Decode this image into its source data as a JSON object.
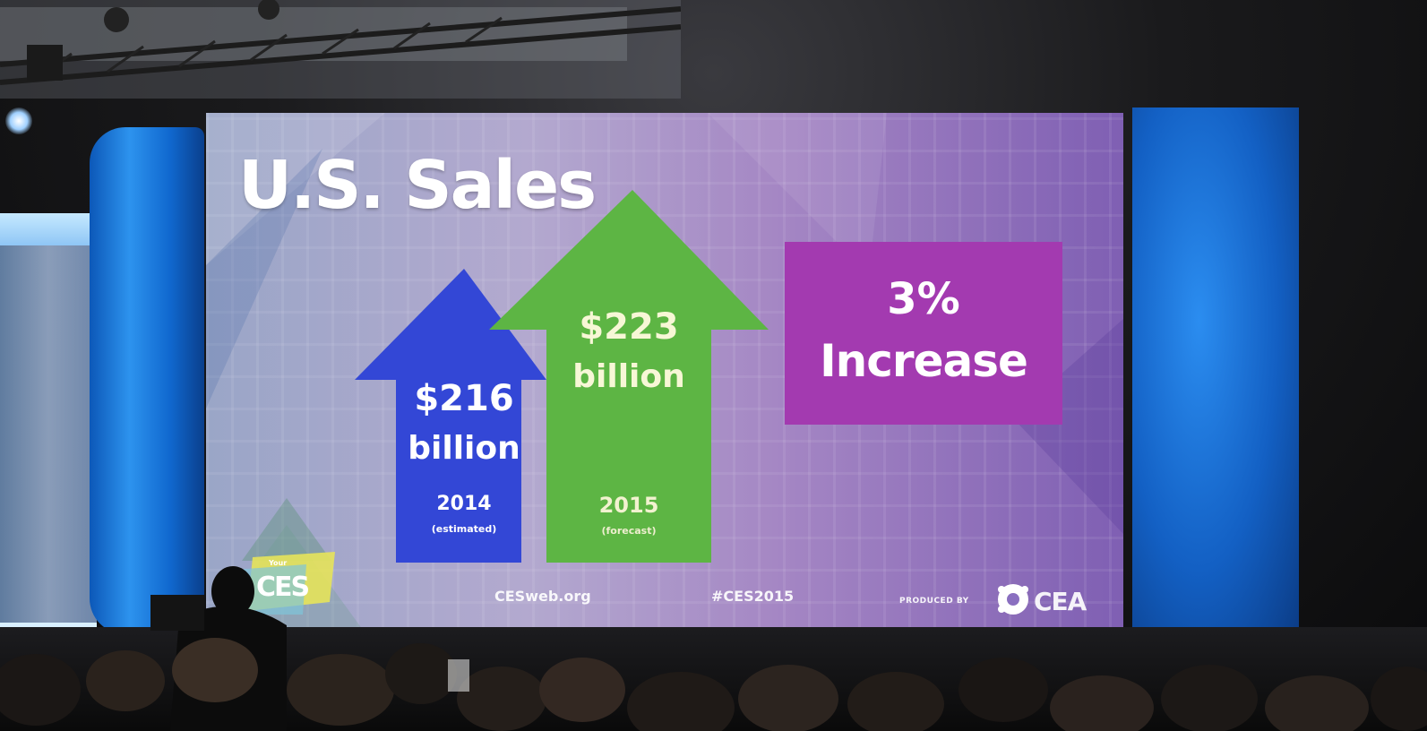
{
  "slide": {
    "title": "U.S. Sales",
    "arrow_2014": {
      "amount": "$216",
      "unit": "billion",
      "year": "2014",
      "note": "(estimated)",
      "color": "#3347d6"
    },
    "arrow_2015": {
      "amount": "$223",
      "unit": "billion",
      "year": "2015",
      "note": "(forecast)",
      "color": "#5db544"
    },
    "increase": {
      "percent": "3%",
      "label": "Increase",
      "color": "#a33ab0"
    },
    "footer": {
      "website": "CESweb.org",
      "hashtag": "#CES2015",
      "produced_by": "PRODUCED BY",
      "organizer": "CEA",
      "event_logo_text": "CES",
      "event_logo_prefix": "Your"
    }
  },
  "colors": {
    "pillar_blue": "#1a74d8",
    "screen_background": "#a79ac9",
    "venue_dark": "#141416"
  }
}
